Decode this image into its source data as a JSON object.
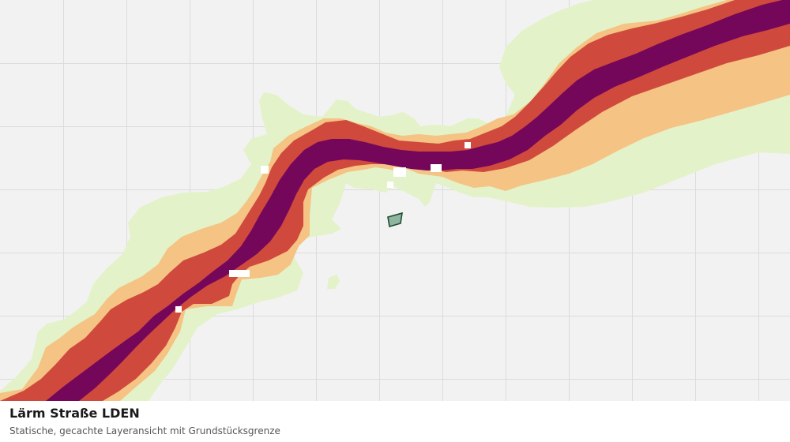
{
  "caption": {
    "title": "Lärm Straße LDEN",
    "subtitle": "Statische, gecachte Layeransicht mit Grundstücksgrenze"
  },
  "map": {
    "background_color": "#f2f2f2",
    "grid_color": "#dcdcdc",
    "noise_zones": [
      {
        "level": "lowest",
        "color": "#e3f2c8"
      },
      {
        "level": "low",
        "color": "#f5c383"
      },
      {
        "level": "high",
        "color": "#cf4a3d"
      },
      {
        "level": "highest",
        "color": "#75075b"
      }
    ],
    "parcel": {
      "fill": "#8fb5a0",
      "stroke": "#1e4d33"
    }
  }
}
